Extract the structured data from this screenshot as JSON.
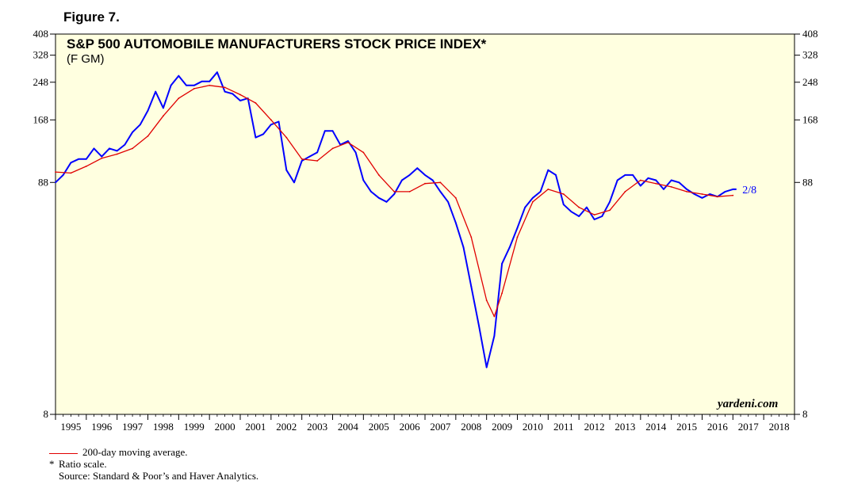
{
  "figure_label": "Figure 7.",
  "footnotes": {
    "legend_ma": "200-day moving average.",
    "star": "*",
    "ratio": "Ratio scale.",
    "source": "Source: Standard & Poor’s and Haver Analytics."
  },
  "watermark": "yardeni.com",
  "colors": {
    "background": "#ffffe0",
    "index_line": "#0000ff",
    "ma_line": "#e00000",
    "axis": "#000000"
  },
  "chart_data": {
    "type": "line",
    "title": "S&P 500 AUTOMOBILE MANUFACTURERS STOCK PRICE INDEX*",
    "subtitle": "(F GM)",
    "xlabel": "",
    "ylabel": "",
    "y_scale": "log",
    "ylim": [
      8,
      408
    ],
    "xlim": [
      1995.0,
      2019.0
    ],
    "y_ticks": [
      8,
      88,
      168,
      248,
      328,
      408
    ],
    "x_tick_labels": [
      "1995",
      "1996",
      "1997",
      "1998",
      "1999",
      "2000",
      "2001",
      "2002",
      "2003",
      "2004",
      "2005",
      "2006",
      "2007",
      "2008",
      "2009",
      "2010",
      "2011",
      "2012",
      "2013",
      "2014",
      "2015",
      "2016",
      "2017",
      "2018"
    ],
    "end_annotation": "2/8",
    "series": [
      {
        "name": "S&P 500 Automobile Manufacturers Stock Price Index",
        "x": [
          1995.0,
          1995.25,
          1995.5,
          1995.75,
          1996.0,
          1996.25,
          1996.5,
          1996.75,
          1997.0,
          1997.25,
          1997.5,
          1997.75,
          1998.0,
          1998.25,
          1998.5,
          1998.75,
          1999.0,
          1999.25,
          1999.5,
          1999.75,
          2000.0,
          2000.25,
          2000.5,
          2000.75,
          2001.0,
          2001.25,
          2001.5,
          2001.75,
          2002.0,
          2002.25,
          2002.5,
          2002.75,
          2003.0,
          2003.25,
          2003.5,
          2003.75,
          2004.0,
          2004.25,
          2004.5,
          2004.75,
          2005.0,
          2005.25,
          2005.5,
          2005.75,
          2006.0,
          2006.25,
          2006.5,
          2006.75,
          2007.0,
          2007.25,
          2007.5,
          2007.75,
          2008.0,
          2008.25,
          2008.5,
          2008.75,
          2009.0,
          2009.25,
          2009.5,
          2009.75,
          2010.0,
          2010.25,
          2010.5,
          2010.75,
          2011.0,
          2011.25,
          2011.5,
          2011.75,
          2012.0,
          2012.25,
          2012.5,
          2012.75,
          2013.0,
          2013.25,
          2013.5,
          2013.75,
          2014.0,
          2014.25,
          2014.5,
          2014.75,
          2015.0,
          2015.25,
          2015.5,
          2015.75,
          2016.0,
          2016.25,
          2016.5,
          2016.75,
          2017.0,
          2017.1
        ],
        "values": [
          88,
          95,
          108,
          112,
          112,
          125,
          115,
          125,
          122,
          130,
          148,
          160,
          185,
          225,
          190,
          240,
          265,
          240,
          240,
          250,
          250,
          275,
          225,
          220,
          205,
          210,
          140,
          145,
          160,
          165,
          100,
          88,
          110,
          115,
          120,
          150,
          150,
          130,
          135,
          120,
          90,
          80,
          75,
          72,
          78,
          90,
          95,
          102,
          95,
          90,
          80,
          72,
          58,
          45,
          30,
          20,
          13,
          18,
          38,
          45,
          55,
          68,
          75,
          80,
          100,
          95,
          70,
          65,
          62,
          68,
          60,
          62,
          72,
          90,
          95,
          95,
          85,
          92,
          90,
          82,
          90,
          88,
          82,
          78,
          75,
          78,
          76,
          80,
          82,
          82
        ]
      },
      {
        "name": "200-day moving average",
        "x": [
          1995.0,
          1995.5,
          1996.0,
          1996.5,
          1997.0,
          1997.5,
          1998.0,
          1998.5,
          1999.0,
          1999.5,
          2000.0,
          2000.5,
          2001.0,
          2001.5,
          2002.0,
          2002.5,
          2003.0,
          2003.5,
          2004.0,
          2004.5,
          2005.0,
          2005.5,
          2006.0,
          2006.5,
          2007.0,
          2007.5,
          2008.0,
          2008.5,
          2009.0,
          2009.25,
          2009.5,
          2010.0,
          2010.5,
          2011.0,
          2011.5,
          2012.0,
          2012.5,
          2013.0,
          2013.5,
          2014.0,
          2014.5,
          2015.0,
          2015.5,
          2016.0,
          2016.5,
          2017.0
        ],
        "values": [
          98,
          97,
          104,
          113,
          118,
          125,
          142,
          175,
          210,
          232,
          240,
          235,
          218,
          200,
          168,
          140,
          112,
          110,
          125,
          133,
          120,
          95,
          80,
          80,
          87,
          88,
          75,
          50,
          26,
          22,
          28,
          50,
          72,
          82,
          78,
          68,
          63,
          66,
          80,
          90,
          87,
          84,
          80,
          78,
          76,
          77
        ]
      }
    ]
  }
}
